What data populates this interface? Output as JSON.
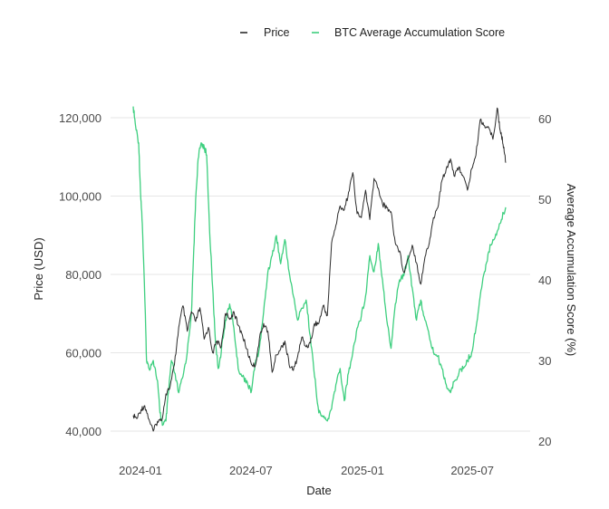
{
  "colors": {
    "price": "#2b2b2b",
    "score": "#3ecf7f",
    "grid": "#e6e6e6",
    "background": "#ffffff"
  },
  "chart_data": {
    "type": "line",
    "title": "",
    "xlabel": "Date",
    "ylabel_left": "Price (USD)",
    "ylabel_right": "Average Accumulation Score (%)",
    "legend_position": "top-right",
    "x_ticks": [
      "2024-01",
      "2024-07",
      "2025-01",
      "2025-07"
    ],
    "y_left_ticks": [
      "40,000",
      "60,000",
      "80,000",
      "100,000",
      "120,000"
    ],
    "y_right_ticks": [
      "20",
      "30",
      "40",
      "50",
      "60"
    ],
    "ylim_left": [
      38000,
      124000
    ],
    "ylim_right": [
      20,
      61.5
    ],
    "xlim": [
      "2023-12-20",
      "2025-08-25"
    ],
    "grid": true,
    "series": [
      {
        "name": "Price",
        "axis": "left",
        "points": [
          [
            "2023-12-20",
            44000
          ],
          [
            "2023-12-26",
            43200
          ],
          [
            "2024-01-02",
            45500
          ],
          [
            "2024-01-08",
            46500
          ],
          [
            "2024-01-15",
            43000
          ],
          [
            "2024-01-22",
            40000
          ],
          [
            "2024-01-29",
            42500
          ],
          [
            "2024-02-05",
            42800
          ],
          [
            "2024-02-12",
            49500
          ],
          [
            "2024-02-19",
            51500
          ],
          [
            "2024-02-26",
            57000
          ],
          [
            "2024-03-04",
            66500
          ],
          [
            "2024-03-11",
            72000
          ],
          [
            "2024-03-18",
            65500
          ],
          [
            "2024-03-25",
            70500
          ],
          [
            "2024-04-01",
            68000
          ],
          [
            "2024-04-08",
            71500
          ],
          [
            "2024-04-15",
            63500
          ],
          [
            "2024-04-22",
            66500
          ],
          [
            "2024-04-29",
            60000
          ],
          [
            "2024-05-06",
            63000
          ],
          [
            "2024-05-13",
            61500
          ],
          [
            "2024-05-20",
            70000
          ],
          [
            "2024-05-27",
            68500
          ],
          [
            "2024-06-03",
            70500
          ],
          [
            "2024-06-10",
            67000
          ],
          [
            "2024-06-17",
            64500
          ],
          [
            "2024-06-24",
            61000
          ],
          [
            "2024-07-01",
            57500
          ],
          [
            "2024-07-08",
            56500
          ],
          [
            "2024-07-15",
            63500
          ],
          [
            "2024-07-22",
            67500
          ],
          [
            "2024-07-29",
            65500
          ],
          [
            "2024-08-05",
            55000
          ],
          [
            "2024-08-12",
            59500
          ],
          [
            "2024-08-19",
            61000
          ],
          [
            "2024-08-26",
            63000
          ],
          [
            "2024-09-02",
            57000
          ],
          [
            "2024-09-09",
            55500
          ],
          [
            "2024-09-16",
            59000
          ],
          [
            "2024-09-23",
            64000
          ],
          [
            "2024-09-30",
            61500
          ],
          [
            "2024-10-07",
            62500
          ],
          [
            "2024-10-14",
            67500
          ],
          [
            "2024-10-21",
            67500
          ],
          [
            "2024-10-28",
            72000
          ],
          [
            "2024-11-04",
            69500
          ],
          [
            "2024-11-11",
            88000
          ],
          [
            "2024-11-18",
            92500
          ],
          [
            "2024-11-25",
            97500
          ],
          [
            "2024-12-02",
            96500
          ],
          [
            "2024-12-09",
            101000
          ],
          [
            "2024-12-16",
            106000
          ],
          [
            "2024-12-23",
            95500
          ],
          [
            "2024-12-30",
            94500
          ],
          [
            "2025-01-06",
            101500
          ],
          [
            "2025-01-13",
            94000
          ],
          [
            "2025-01-20",
            104500
          ],
          [
            "2025-01-27",
            102000
          ],
          [
            "2025-02-03",
            98000
          ],
          [
            "2025-02-10",
            97000
          ],
          [
            "2025-02-17",
            96000
          ],
          [
            "2025-02-24",
            88000
          ],
          [
            "2025-03-03",
            86000
          ],
          [
            "2025-03-10",
            80500
          ],
          [
            "2025-03-17",
            84000
          ],
          [
            "2025-03-24",
            87500
          ],
          [
            "2025-03-31",
            83000
          ],
          [
            "2025-04-07",
            77500
          ],
          [
            "2025-04-14",
            84500
          ],
          [
            "2025-04-21",
            88000
          ],
          [
            "2025-04-28",
            94500
          ],
          [
            "2025-05-05",
            97000
          ],
          [
            "2025-05-12",
            104000
          ],
          [
            "2025-05-19",
            107000
          ],
          [
            "2025-05-26",
            109500
          ],
          [
            "2025-06-02",
            105000
          ],
          [
            "2025-06-09",
            107500
          ],
          [
            "2025-06-16",
            105000
          ],
          [
            "2025-06-23",
            101500
          ],
          [
            "2025-06-30",
            107000
          ],
          [
            "2025-07-07",
            110500
          ],
          [
            "2025-07-14",
            119500
          ],
          [
            "2025-07-21",
            118000
          ],
          [
            "2025-07-28",
            117500
          ],
          [
            "2025-08-04",
            114500
          ],
          [
            "2025-08-11",
            122500
          ],
          [
            "2025-08-15",
            117500
          ],
          [
            "2025-08-18",
            115500
          ],
          [
            "2025-08-22",
            112500
          ],
          [
            "2025-08-25",
            108500
          ]
        ]
      },
      {
        "name": "BTC Average Accumulation Score",
        "axis": "right",
        "points": [
          [
            "2023-12-20",
            61.5
          ],
          [
            "2023-12-24",
            59
          ],
          [
            "2023-12-29",
            57
          ],
          [
            "2024-01-01",
            51
          ],
          [
            "2024-01-04",
            47
          ],
          [
            "2024-01-08",
            38
          ],
          [
            "2024-01-11",
            30
          ],
          [
            "2024-01-15",
            29
          ],
          [
            "2024-01-22",
            30
          ],
          [
            "2024-01-29",
            27.5
          ],
          [
            "2024-02-02",
            23.5
          ],
          [
            "2024-02-07",
            22
          ],
          [
            "2024-02-12",
            22.5
          ],
          [
            "2024-02-16",
            26
          ],
          [
            "2024-02-21",
            30
          ],
          [
            "2024-02-26",
            28.5
          ],
          [
            "2024-03-04",
            26
          ],
          [
            "2024-03-11",
            28
          ],
          [
            "2024-03-18",
            31
          ],
          [
            "2024-03-25",
            36
          ],
          [
            "2024-03-29",
            44
          ],
          [
            "2024-04-01",
            50
          ],
          [
            "2024-04-05",
            55
          ],
          [
            "2024-04-10",
            57
          ],
          [
            "2024-04-15",
            56.5
          ],
          [
            "2024-04-19",
            55.5
          ],
          [
            "2024-04-24",
            46
          ],
          [
            "2024-04-29",
            39
          ],
          [
            "2024-05-03",
            33
          ],
          [
            "2024-05-08",
            29
          ],
          [
            "2024-05-13",
            31
          ],
          [
            "2024-05-20",
            35
          ],
          [
            "2024-05-27",
            37
          ],
          [
            "2024-06-03",
            34
          ],
          [
            "2024-06-10",
            29
          ],
          [
            "2024-06-17",
            28
          ],
          [
            "2024-06-24",
            27.5
          ],
          [
            "2024-07-01",
            26
          ],
          [
            "2024-07-08",
            29.5
          ],
          [
            "2024-07-15",
            31.5
          ],
          [
            "2024-07-22",
            36
          ],
          [
            "2024-07-29",
            41
          ],
          [
            "2024-08-05",
            43
          ],
          [
            "2024-08-12",
            45.5
          ],
          [
            "2024-08-19",
            42
          ],
          [
            "2024-08-26",
            45
          ],
          [
            "2024-09-02",
            41
          ],
          [
            "2024-09-09",
            38
          ],
          [
            "2024-09-16",
            35
          ],
          [
            "2024-09-23",
            36.5
          ],
          [
            "2024-09-30",
            37.5
          ],
          [
            "2024-10-07",
            33
          ],
          [
            "2024-10-14",
            28
          ],
          [
            "2024-10-21",
            23.5
          ],
          [
            "2024-10-28",
            23
          ],
          [
            "2024-11-04",
            22.5
          ],
          [
            "2024-11-11",
            24
          ],
          [
            "2024-11-18",
            27
          ],
          [
            "2024-11-25",
            29
          ],
          [
            "2024-12-02",
            25
          ],
          [
            "2024-12-09",
            28.5
          ],
          [
            "2024-12-16",
            31
          ],
          [
            "2024-12-23",
            34
          ],
          [
            "2024-12-30",
            35.5
          ],
          [
            "2025-01-06",
            38
          ],
          [
            "2025-01-13",
            43
          ],
          [
            "2025-01-20",
            41
          ],
          [
            "2025-01-27",
            44.5
          ],
          [
            "2025-02-03",
            40
          ],
          [
            "2025-02-10",
            35
          ],
          [
            "2025-02-17",
            31.5
          ],
          [
            "2025-02-24",
            37
          ],
          [
            "2025-03-03",
            40
          ],
          [
            "2025-03-10",
            40.5
          ],
          [
            "2025-03-17",
            43
          ],
          [
            "2025-03-24",
            39
          ],
          [
            "2025-03-31",
            35
          ],
          [
            "2025-04-07",
            37.5
          ],
          [
            "2025-04-14",
            35
          ],
          [
            "2025-04-21",
            33
          ],
          [
            "2025-04-28",
            31
          ],
          [
            "2025-05-05",
            30.5
          ],
          [
            "2025-05-12",
            29
          ],
          [
            "2025-05-19",
            27
          ],
          [
            "2025-05-26",
            26
          ],
          [
            "2025-06-02",
            27.5
          ],
          [
            "2025-06-09",
            28.5
          ],
          [
            "2025-06-16",
            29
          ],
          [
            "2025-06-23",
            30
          ],
          [
            "2025-06-30",
            31
          ],
          [
            "2025-07-07",
            34
          ],
          [
            "2025-07-14",
            38
          ],
          [
            "2025-07-21",
            41
          ],
          [
            "2025-07-28",
            43.5
          ],
          [
            "2025-08-04",
            45
          ],
          [
            "2025-08-11",
            46
          ],
          [
            "2025-08-18",
            47.5
          ],
          [
            "2025-08-25",
            49
          ]
        ]
      }
    ]
  }
}
